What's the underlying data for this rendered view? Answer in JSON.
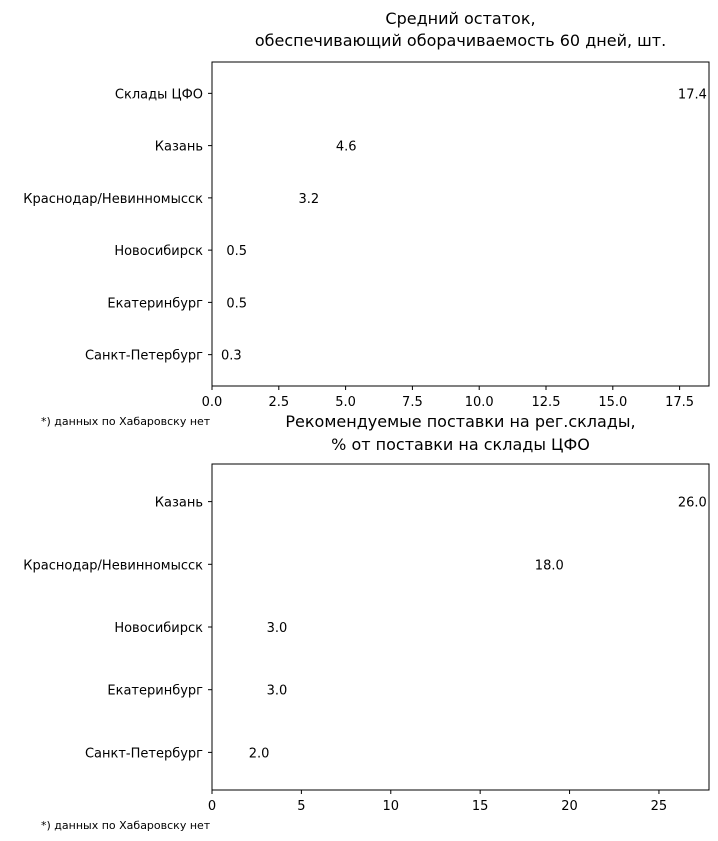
{
  "chart_data": [
    {
      "type": "bar",
      "orientation": "horizontal",
      "title": "Средний остаток,\nобеспечивающий оборачиваемость 60 дней, шт.",
      "categories": [
        "Склады ЦФО",
        "Казань",
        "Краснодар/Невинномысск",
        "Новосибирск",
        "Екатеринбург",
        "Санкт-Петербург"
      ],
      "values": [
        17.4,
        4.6,
        3.2,
        0.5,
        0.5,
        0.3
      ],
      "data_labels": [
        "17.4",
        "4.6",
        "3.2",
        "0.5",
        "0.5",
        "0.3"
      ],
      "xlim": [
        0,
        18.6
      ],
      "xticks": [
        0,
        2.5,
        5,
        7.5,
        10,
        12.5,
        15,
        17.5
      ],
      "xtick_labels": [
        "0.0",
        "2.5",
        "5.0",
        "7.5",
        "10.0",
        "12.5",
        "15.0",
        "17.5"
      ],
      "color": "#1f77b4",
      "grid": false,
      "footnote": "*) данных по Хабаровску нет"
    },
    {
      "type": "bar",
      "orientation": "horizontal",
      "title": "Рекомендуемые поставки на рег.склады,\n% от поставки на склады ЦФО",
      "categories": [
        "Казань",
        "Краснодар/Невинномысск",
        "Новосибирск",
        "Екатеринбург",
        "Санкт-Петербург"
      ],
      "values": [
        26.0,
        18.0,
        3.0,
        3.0,
        2.0
      ],
      "data_labels": [
        "26.0",
        "18.0",
        "3.0",
        "3.0",
        "2.0"
      ],
      "xlim": [
        0,
        27.8
      ],
      "xticks": [
        0,
        5,
        10,
        15,
        20,
        25
      ],
      "xtick_labels": [
        "0",
        "5",
        "10",
        "15",
        "20",
        "25"
      ],
      "color": "#1f77b4",
      "grid": false,
      "footnote": "*) данных по Хабаровску нет"
    }
  ]
}
